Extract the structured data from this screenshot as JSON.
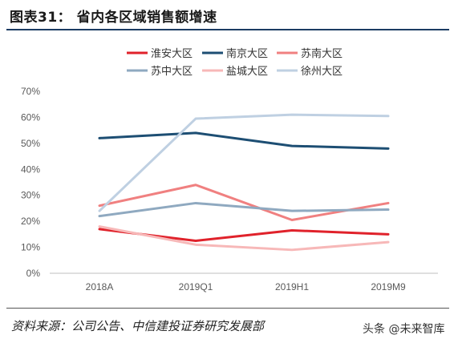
{
  "header": {
    "title": "图表31：   省内各区域销售额增速"
  },
  "footer": {
    "source": "资料来源：公司公告、中信建投证券研究发展部",
    "watermark": "头条 @未来智库"
  },
  "chart_data": {
    "type": "line",
    "title": "",
    "xlabel": "",
    "ylabel": "",
    "categories": [
      "2018A",
      "2019Q1",
      "2019H1",
      "2019M9"
    ],
    "ylim": [
      0,
      70
    ],
    "yticks": [
      "0%",
      "10%",
      "20%",
      "30%",
      "40%",
      "50%",
      "60%",
      "70%"
    ],
    "grid": false,
    "legend_position": "top",
    "series": [
      {
        "name": "淮安大区",
        "color": "#e0222b",
        "values": [
          17,
          12.5,
          16.5,
          15
        ]
      },
      {
        "name": "南京大区",
        "color": "#1d4e73",
        "values": [
          52,
          54,
          49,
          48
        ]
      },
      {
        "name": "苏南大区",
        "color": "#f08080",
        "values": [
          26,
          34,
          20.5,
          27
        ]
      },
      {
        "name": "苏中大区",
        "color": "#8fa9c0",
        "values": [
          22,
          27,
          24,
          24.5
        ]
      },
      {
        "name": "盐城大区",
        "color": "#f7b8b8",
        "values": [
          18,
          11,
          9,
          12
        ]
      },
      {
        "name": "徐州大区",
        "color": "#bfd0e2",
        "values": [
          24,
          59.5,
          61,
          60.5
        ]
      }
    ]
  }
}
